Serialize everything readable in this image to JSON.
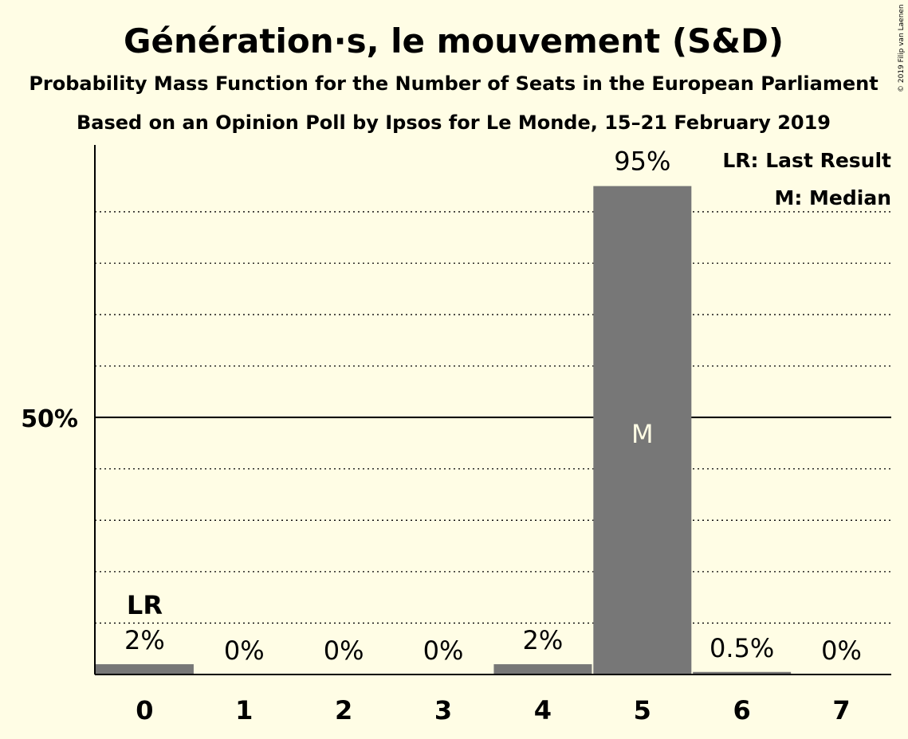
{
  "chart_data": {
    "type": "bar",
    "title": "Génération·s, le mouvement (S&D)",
    "subtitle": "Probability Mass Function for the Number of Seats in the European Parliament",
    "subtitle2": "Based on an Opinion Poll by Ipsos for Le Monde, 15–21 February 2019",
    "copyright": "© 2019 Filip van Laenen",
    "categories": [
      "0",
      "1",
      "2",
      "3",
      "4",
      "5",
      "6",
      "7"
    ],
    "values": [
      2,
      0,
      0,
      0,
      2,
      95,
      0.5,
      0
    ],
    "value_labels": [
      "2%",
      "0%",
      "0%",
      "0%",
      "2%",
      "95%",
      "0.5%",
      "0%"
    ],
    "ylim": [
      0,
      103
    ],
    "y_tick_label": "50%",
    "y_tick_value": 50,
    "grid_values": [
      10,
      20,
      30,
      40,
      60,
      70,
      80,
      90
    ],
    "grid": true,
    "last_result_index": 0,
    "last_result_marker": "LR",
    "median_index": 5,
    "median_marker": "M",
    "legend": {
      "position": "top-right",
      "items": [
        "LR: Last Result",
        "M: Median"
      ]
    },
    "colors": {
      "background": "#FFFDE5",
      "bar": "#777777",
      "axis": "#000000",
      "median_text": "#FFFDE5"
    }
  }
}
